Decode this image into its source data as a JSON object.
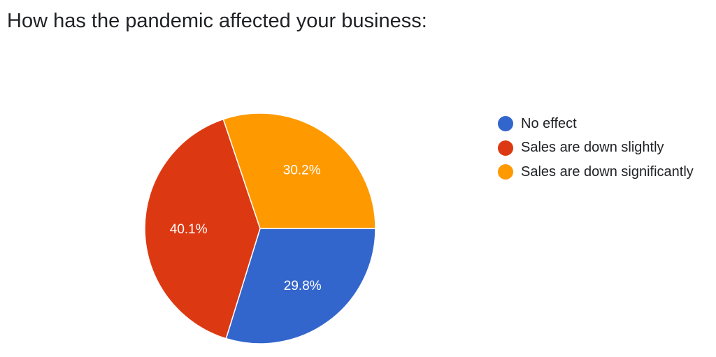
{
  "chart_data": {
    "type": "pie",
    "title": "How has the pandemic affected your business:",
    "slices": [
      {
        "label": "No effect",
        "value": 29.8,
        "display": "29.8%",
        "color": "#3366cc"
      },
      {
        "label": "Sales are down slightly",
        "value": 40.1,
        "display": "40.1%",
        "color": "#dc3912"
      },
      {
        "label": "Sales are down significantly",
        "value": 30.2,
        "display": "30.2%",
        "color": "#ff9900"
      }
    ],
    "legend_position": "right",
    "start_angle": "3 o'clock, clockwise"
  }
}
